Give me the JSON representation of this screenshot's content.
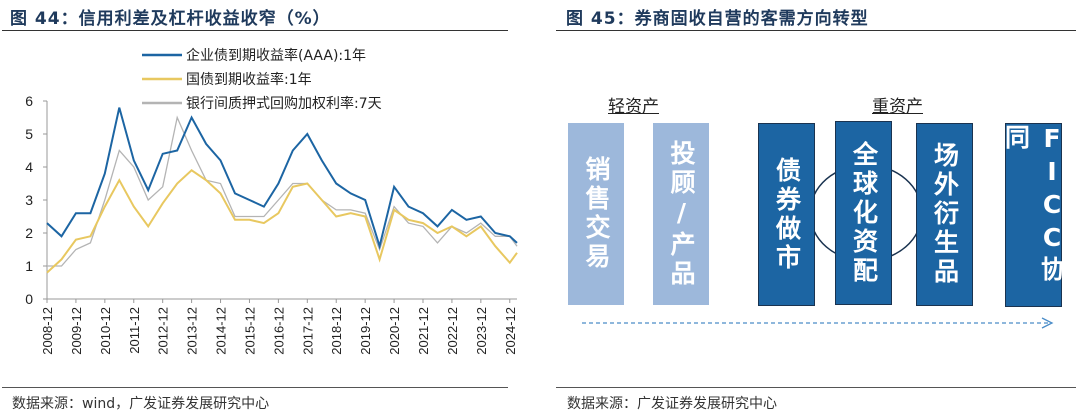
{
  "left": {
    "title": "图 44：信用利差及杠杆收益收窄（%）",
    "source": "数据来源：wind，广发证券发展研究中心"
  },
  "right": {
    "title": "图 45：券商固收自营的客需方向转型",
    "source": "数据来源：广发证券发展研究中心",
    "light_label": "轻资产",
    "heavy_label": "重资产",
    "light_boxes": [
      "销售交易",
      "投顾/产品"
    ],
    "heavy_boxes": [
      "债券做市",
      "全球化资配",
      "场外衍生品",
      "FICC协同"
    ],
    "colors": {
      "light": "#9db8db",
      "dark": "#1c65a3",
      "arrow": "#4a8cc8"
    }
  },
  "chart_data": {
    "type": "line",
    "title": "",
    "xlabel": "",
    "ylabel": "",
    "ylim": [
      0,
      6
    ],
    "yticks": [
      0,
      1,
      2,
      3,
      4,
      5,
      6
    ],
    "xticks": [
      "2008-12",
      "2009-12",
      "2010-12",
      "2011-12",
      "2012-12",
      "2013-12",
      "2014-12",
      "2015-12",
      "2016-12",
      "2017-12",
      "2018-12",
      "2019-12",
      "2020-12",
      "2021-12",
      "2022-12",
      "2023-12",
      "2024-12"
    ],
    "legend_position": "top-center",
    "grid": false,
    "x": [
      "2008-12",
      "2009-06",
      "2009-12",
      "2010-06",
      "2010-12",
      "2011-06",
      "2011-12",
      "2012-06",
      "2012-12",
      "2013-06",
      "2013-12",
      "2014-06",
      "2014-12",
      "2015-06",
      "2015-12",
      "2016-06",
      "2016-12",
      "2017-06",
      "2017-12",
      "2018-06",
      "2018-12",
      "2019-06",
      "2019-12",
      "2020-06",
      "2020-12",
      "2021-06",
      "2021-12",
      "2022-06",
      "2022-12",
      "2023-06",
      "2023-12",
      "2024-06",
      "2024-12",
      "2025-03"
    ],
    "series": [
      {
        "name": "企业债到期收益率(AAA):1年",
        "color": "#1c65a3",
        "values": [
          2.3,
          1.9,
          2.6,
          2.6,
          3.8,
          5.8,
          4.2,
          3.3,
          4.4,
          4.5,
          5.5,
          4.7,
          4.2,
          3.2,
          3.0,
          2.8,
          3.5,
          4.5,
          5.0,
          4.2,
          3.5,
          3.2,
          3.0,
          1.6,
          3.4,
          2.8,
          2.6,
          2.2,
          2.7,
          2.4,
          2.5,
          2.0,
          1.9,
          1.7
        ]
      },
      {
        "name": "国债到期收益率:1年",
        "color": "#e8c860",
        "values": [
          0.8,
          1.2,
          1.8,
          1.9,
          2.8,
          3.6,
          2.8,
          2.2,
          2.9,
          3.5,
          3.9,
          3.6,
          3.2,
          2.4,
          2.4,
          2.3,
          2.6,
          3.4,
          3.5,
          3.0,
          2.5,
          2.6,
          2.5,
          1.2,
          2.7,
          2.4,
          2.3,
          2.0,
          2.2,
          1.9,
          2.2,
          1.6,
          1.1,
          1.4
        ]
      },
      {
        "name": "银行间质押式回购加权利率:7天",
        "color": "#b4b4b4",
        "values": [
          1.0,
          1.0,
          1.5,
          1.7,
          3.0,
          4.5,
          4.0,
          3.0,
          3.4,
          5.5,
          4.5,
          3.6,
          3.5,
          2.5,
          2.5,
          2.5,
          3.0,
          3.5,
          3.5,
          3.0,
          2.7,
          2.7,
          2.6,
          1.5,
          2.8,
          2.3,
          2.2,
          1.7,
          2.2,
          2.0,
          2.3,
          1.9,
          1.9,
          1.6
        ]
      }
    ]
  }
}
